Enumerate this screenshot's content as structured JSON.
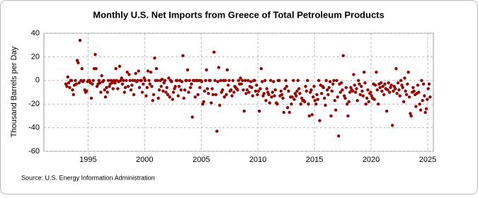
{
  "chart_data": {
    "type": "scatter",
    "title": "Monthly U.S. Net Imports from Greece of Total Petroleum Products",
    "ylabel": "Thousand Barrels per Day",
    "source": "Source: U.S. Energy Information Administration",
    "color": "#a00000",
    "grid": true,
    "xlim": [
      1991.1,
      2025.5
    ],
    "xticks": [
      1995,
      2000,
      2005,
      2010,
      2015,
      2020,
      2025
    ],
    "ylim": [
      -60,
      40
    ],
    "yticks": [
      -60,
      -40,
      -20,
      0,
      20,
      40
    ],
    "x": [
      1993.04,
      1993.13,
      1993.21,
      1993.29,
      1993.38,
      1993.46,
      1993.54,
      1993.63,
      1993.71,
      1993.79,
      1993.88,
      1993.96,
      1994.04,
      1994.13,
      1994.21,
      1994.29,
      1994.38,
      1994.46,
      1994.54,
      1994.63,
      1994.71,
      1994.79,
      1994.88,
      1994.96,
      1995.04,
      1995.13,
      1995.21,
      1995.29,
      1995.38,
      1995.46,
      1995.54,
      1995.63,
      1995.71,
      1995.79,
      1995.88,
      1995.96,
      1996.04,
      1996.13,
      1996.21,
      1996.29,
      1996.38,
      1996.46,
      1996.54,
      1996.63,
      1996.71,
      1996.79,
      1996.88,
      1996.96,
      1997.04,
      1997.13,
      1997.21,
      1997.29,
      1997.38,
      1997.46,
      1997.54,
      1997.63,
      1997.71,
      1997.79,
      1997.88,
      1997.96,
      1998.04,
      1998.13,
      1998.21,
      1998.29,
      1998.38,
      1998.46,
      1998.54,
      1998.63,
      1998.71,
      1998.79,
      1998.88,
      1998.96,
      1999.04,
      1999.13,
      1999.21,
      1999.29,
      1999.38,
      1999.46,
      1999.54,
      1999.63,
      1999.71,
      1999.79,
      1999.88,
      1999.96,
      2000.04,
      2000.13,
      2000.21,
      2000.29,
      2000.38,
      2000.46,
      2000.54,
      2000.63,
      2000.71,
      2000.79,
      2000.88,
      2000.96,
      2001.04,
      2001.13,
      2001.21,
      2001.29,
      2001.38,
      2001.46,
      2001.54,
      2001.63,
      2001.71,
      2001.79,
      2001.88,
      2001.96,
      2002.04,
      2002.13,
      2002.21,
      2002.29,
      2002.38,
      2002.46,
      2002.54,
      2002.63,
      2002.71,
      2002.79,
      2002.88,
      2002.96,
      2003.04,
      2003.13,
      2003.21,
      2003.29,
      2003.38,
      2003.46,
      2003.54,
      2003.63,
      2003.71,
      2003.79,
      2003.88,
      2003.96,
      2004.04,
      2004.13,
      2004.21,
      2004.29,
      2004.38,
      2004.46,
      2004.54,
      2004.63,
      2004.71,
      2004.79,
      2004.88,
      2004.96,
      2005.04,
      2005.13,
      2005.21,
      2005.29,
      2005.38,
      2005.46,
      2005.54,
      2005.63,
      2005.71,
      2005.79,
      2005.88,
      2005.96,
      2006.04,
      2006.13,
      2006.21,
      2006.29,
      2006.38,
      2006.46,
      2006.54,
      2006.63,
      2006.71,
      2006.79,
      2006.88,
      2006.96,
      2007.04,
      2007.13,
      2007.21,
      2007.29,
      2007.38,
      2007.46,
      2007.54,
      2007.63,
      2007.71,
      2007.79,
      2007.88,
      2007.96,
      2008.04,
      2008.13,
      2008.21,
      2008.29,
      2008.38,
      2008.46,
      2008.54,
      2008.63,
      2008.71,
      2008.79,
      2008.88,
      2008.96,
      2009.04,
      2009.13,
      2009.21,
      2009.29,
      2009.38,
      2009.46,
      2009.54,
      2009.63,
      2009.71,
      2009.79,
      2009.88,
      2009.96,
      2010.04,
      2010.13,
      2010.21,
      2010.29,
      2010.38,
      2010.46,
      2010.54,
      2010.63,
      2010.71,
      2010.79,
      2010.88,
      2010.96,
      2011.04,
      2011.13,
      2011.21,
      2011.29,
      2011.38,
      2011.46,
      2011.54,
      2011.63,
      2011.71,
      2011.79,
      2011.88,
      2011.96,
      2012.04,
      2012.13,
      2012.21,
      2012.29,
      2012.38,
      2012.46,
      2012.54,
      2012.63,
      2012.71,
      2012.79,
      2012.88,
      2012.96,
      2013.04,
      2013.13,
      2013.21,
      2013.29,
      2013.38,
      2013.46,
      2013.54,
      2013.63,
      2013.71,
      2013.79,
      2013.88,
      2013.96,
      2014.04,
      2014.13,
      2014.21,
      2014.29,
      2014.38,
      2014.46,
      2014.54,
      2014.63,
      2014.71,
      2014.79,
      2014.88,
      2014.96,
      2015.04,
      2015.13,
      2015.21,
      2015.29,
      2015.38,
      2015.46,
      2015.54,
      2015.63,
      2015.71,
      2015.79,
      2015.88,
      2015.96,
      2016.04,
      2016.13,
      2016.21,
      2016.29,
      2016.38,
      2016.46,
      2016.54,
      2016.63,
      2016.71,
      2016.79,
      2016.88,
      2016.96,
      2017.04,
      2017.13,
      2017.21,
      2017.29,
      2017.38,
      2017.46,
      2017.54,
      2017.63,
      2017.71,
      2017.79,
      2017.88,
      2017.96,
      2018.04,
      2018.13,
      2018.21,
      2018.29,
      2018.38,
      2018.46,
      2018.54,
      2018.63,
      2018.71,
      2018.79,
      2018.88,
      2018.96,
      2019.04,
      2019.13,
      2019.21,
      2019.29,
      2019.38,
      2019.46,
      2019.54,
      2019.63,
      2019.71,
      2019.79,
      2019.88,
      2019.96,
      2020.04,
      2020.13,
      2020.21,
      2020.29,
      2020.38,
      2020.46,
      2020.54,
      2020.63,
      2020.71,
      2020.79,
      2020.88,
      2020.96,
      2021.04,
      2021.13,
      2021.21,
      2021.29,
      2021.38,
      2021.46,
      2021.54,
      2021.63,
      2021.71,
      2021.79,
      2021.88,
      2021.96,
      2022.04,
      2022.13,
      2022.21,
      2022.29,
      2022.38,
      2022.46,
      2022.54,
      2022.63,
      2022.71,
      2022.79,
      2022.88,
      2022.96,
      2023.04,
      2023.13,
      2023.21,
      2023.29,
      2023.38,
      2023.46,
      2023.54,
      2023.63,
      2023.71,
      2023.79,
      2023.88,
      2023.96,
      2024.04,
      2024.13,
      2024.21,
      2024.29,
      2024.38,
      2024.46,
      2024.54,
      2024.63,
      2024.71,
      2024.79,
      2024.88,
      2024.96,
      2025.04,
      2025.13,
      2025.21
    ],
    "values": [
      -3,
      -5,
      3,
      -2,
      -6,
      0,
      0,
      -8,
      -12,
      -4,
      0,
      -3,
      17,
      15,
      -2,
      34,
      0,
      10,
      -1,
      0,
      -8,
      -10,
      -9,
      -1,
      0,
      0,
      -2,
      -15,
      -3,
      0,
      10,
      22,
      10,
      -5,
      -3,
      0,
      -2,
      -10,
      4,
      -1,
      0,
      -8,
      -14,
      -6,
      -10,
      0,
      -5,
      -3,
      0,
      -2,
      -7,
      0,
      -2,
      10,
      0,
      -7,
      -1,
      12,
      0,
      2,
      -3,
      0,
      -10,
      -6,
      0,
      7,
      -5,
      5,
      0,
      -8,
      -4,
      0,
      -12,
      0,
      6,
      -1,
      0,
      8,
      -6,
      0,
      0,
      -10,
      -3,
      2,
      0,
      -13,
      -6,
      8,
      0,
      -3,
      7,
      -5,
      -17,
      -12,
      19,
      0,
      10,
      0,
      -15,
      -8,
      0,
      -5,
      1,
      -9,
      -2,
      0,
      -10,
      -6,
      -12,
      2,
      -14,
      0,
      -1,
      -16,
      -10,
      -7,
      -5,
      0,
      0,
      -13,
      -5,
      0,
      -8,
      -1,
      21,
      -15,
      -8,
      0,
      0,
      9,
      -10,
      0,
      -6,
      -3,
      -31,
      0,
      0,
      -14,
      0,
      0,
      -12,
      0,
      -6,
      0,
      -1,
      -20,
      -18,
      -9,
      0,
      9,
      -7,
      -11,
      0,
      0,
      -19,
      -7,
      -12,
      24,
      0,
      -12,
      -43,
      -1,
      11,
      -21,
      0,
      -10,
      -8,
      0,
      -14,
      0,
      -12,
      9,
      -4,
      0,
      -9,
      -8,
      -13,
      0,
      -10,
      -5,
      -6,
      -7,
      -8,
      0,
      -3,
      2,
      -3,
      0,
      -8,
      -26,
      0,
      -11,
      -8,
      0,
      -10,
      -5,
      -1,
      -6,
      -13,
      0,
      0,
      -9,
      -4,
      -12,
      -9,
      -26,
      -7,
      10,
      -1,
      -13,
      -11,
      0,
      -17,
      -7,
      -10,
      -12,
      -19,
      0,
      -14,
      -10,
      -1,
      -13,
      -8,
      -19,
      -20,
      0,
      0,
      -13,
      -9,
      -12,
      -15,
      -27,
      -7,
      0,
      -5,
      -23,
      -9,
      -27,
      -14,
      -20,
      -14,
      0,
      -16,
      -11,
      -13,
      -9,
      0,
      -7,
      -11,
      -20,
      -15,
      -17,
      -17,
      -18,
      -5,
      -9,
      0,
      -20,
      -30,
      -10,
      -8,
      -29,
      -14,
      -5,
      -17,
      -20,
      -12,
      -16,
      0,
      -34,
      -4,
      -11,
      -5,
      -6,
      -15,
      -21,
      0,
      -8,
      -12,
      -6,
      -1,
      -30,
      -9,
      -3,
      0,
      -17,
      -25,
      0,
      -14,
      -47,
      -3,
      -10,
      -2,
      -8,
      21,
      -13,
      -15,
      -6,
      -20,
      -30,
      -18,
      -10,
      -6,
      -8,
      -9,
      5,
      -4,
      -10,
      -7,
      -17,
      0,
      -3,
      -12,
      -5,
      -9,
      -13,
      7,
      -2,
      -20,
      -15,
      -8,
      -18,
      -11,
      -10,
      -13,
      -15,
      -3,
      -16,
      -4,
      7,
      -8,
      -20,
      -3,
      -6,
      -2,
      -9,
      -5,
      -12,
      -3,
      -7,
      -26,
      -8,
      -2,
      -10,
      -6,
      -4,
      -38,
      -9,
      -5,
      -7,
      10,
      -11,
      -2,
      -8,
      -13,
      0,
      -4,
      -6,
      -18,
      2,
      -9,
      -12,
      -3,
      7,
      -14,
      -28,
      -30,
      -10,
      -6,
      -9,
      -12,
      -22,
      -11,
      -4,
      -10,
      -20,
      -25,
      0,
      -17,
      -3,
      -13,
      -27,
      -24,
      -16,
      -7,
      -3,
      -14
    ]
  }
}
